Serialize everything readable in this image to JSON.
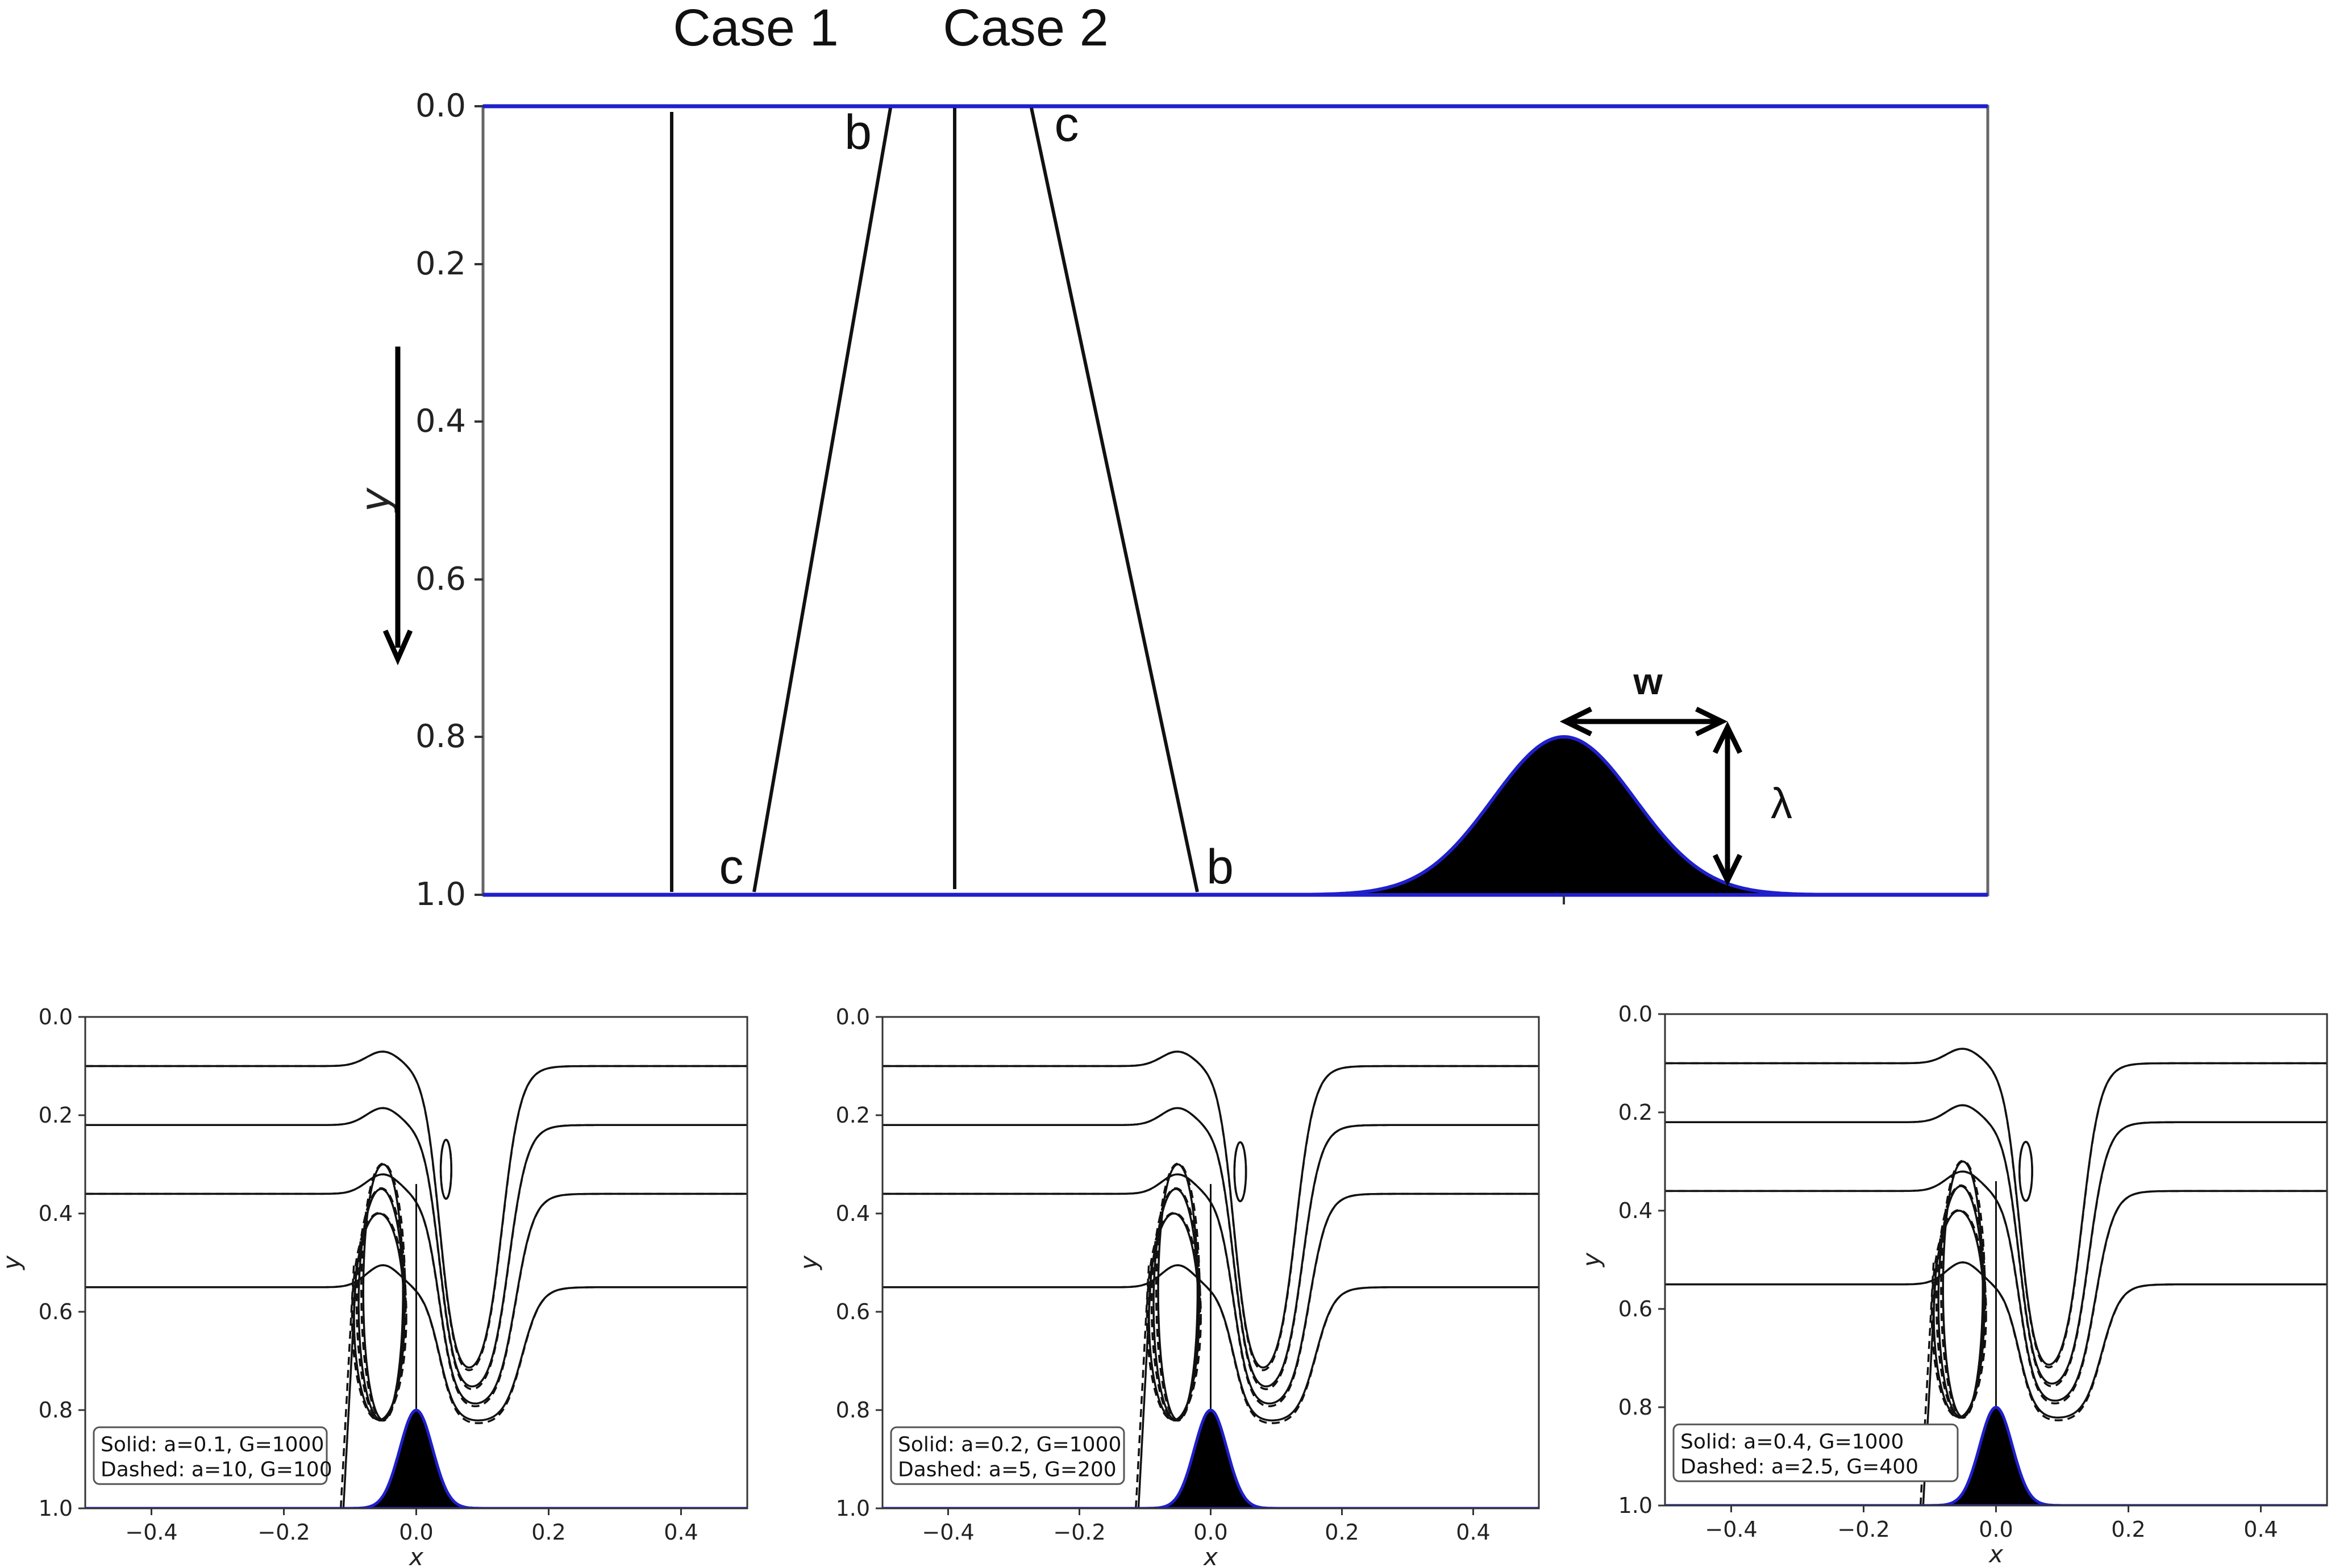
{
  "chart_data": [
    {
      "type": "line",
      "role": "schematic",
      "column_labels": [
        "Case 1",
        "Case 2"
      ],
      "ylabel": "y",
      "yticks": [
        "0.0",
        "0.2",
        "0.4",
        "0.6",
        "0.8",
        "1.0"
      ],
      "ylim": [
        0.0,
        1.0
      ],
      "y_inverted": true,
      "profile_labels": {
        "top_left": "b",
        "bottom_left": "c",
        "top_right": "c",
        "bottom_right": "b"
      },
      "bump": {
        "peak_y": 0.8,
        "base_y": 1.0,
        "width_label": "w",
        "height_label": "λ"
      },
      "colors": {
        "boundary": "#1f1fcc",
        "line": "#111111",
        "fill": "#000000"
      }
    },
    {
      "type": "line",
      "title": "",
      "xlabel": "x",
      "ylabel": "y",
      "xlim": [
        -0.5,
        0.5
      ],
      "ylim": [
        0.0,
        1.0
      ],
      "y_inverted": true,
      "xticks": [
        "−0.4",
        "−0.2",
        "0.0",
        "0.2",
        "0.4"
      ],
      "yticks": [
        "0.0",
        "0.2",
        "0.4",
        "0.6",
        "0.8",
        "1.0"
      ],
      "series": [
        {
          "name": "Solid: a=0.1, G=1000",
          "style": "solid",
          "interface_levels": [
            0.1,
            0.22,
            0.36,
            0.55
          ]
        },
        {
          "name": "Dashed: a=10, G=100",
          "style": "dashed",
          "interface_levels": [
            0.1,
            0.22,
            0.36,
            0.55
          ]
        }
      ],
      "legend_lines": [
        "Solid: a=0.1, G=1000",
        "Dashed: a=10, G=100"
      ],
      "legend_position": "lower-left",
      "bump": {
        "center_x": 0.0,
        "peak_y": 0.8,
        "base_y": 1.0
      }
    },
    {
      "type": "line",
      "xlabel": "x",
      "ylabel": "y",
      "xlim": [
        -0.5,
        0.5
      ],
      "ylim": [
        0.0,
        1.0
      ],
      "y_inverted": true,
      "xticks": [
        "−0.4",
        "−0.2",
        "0.0",
        "0.2",
        "0.4"
      ],
      "yticks": [
        "0.0",
        "0.2",
        "0.4",
        "0.6",
        "0.8",
        "1.0"
      ],
      "series": [
        {
          "name": "Solid: a=0.2, G=1000",
          "style": "solid",
          "interface_levels": [
            0.1,
            0.22,
            0.36,
            0.55
          ]
        },
        {
          "name": "Dashed: a=5, G=200",
          "style": "dashed",
          "interface_levels": [
            0.1,
            0.22,
            0.36,
            0.55
          ]
        }
      ],
      "legend_lines": [
        "Solid: a=0.2, G=1000",
        "Dashed: a=5, G=200"
      ],
      "legend_position": "lower-left",
      "bump": {
        "center_x": 0.0,
        "peak_y": 0.8,
        "base_y": 1.0
      }
    },
    {
      "type": "line",
      "xlabel": "x",
      "ylabel": "y",
      "xlim": [
        -0.5,
        0.5
      ],
      "ylim": [
        0.0,
        1.0
      ],
      "y_inverted": true,
      "xticks": [
        "−0.4",
        "−0.2",
        "0.0",
        "0.2",
        "0.4"
      ],
      "yticks": [
        "0.0",
        "0.2",
        "0.4",
        "0.6",
        "0.8",
        "1.0"
      ],
      "series": [
        {
          "name": "Solid: a=0.4, G=1000",
          "style": "solid",
          "interface_levels": [
            0.1,
            0.22,
            0.36,
            0.55
          ]
        },
        {
          "name": "Dashed: a=2.5, G=400",
          "style": "dashed",
          "interface_levels": [
            0.1,
            0.22,
            0.36,
            0.55
          ]
        }
      ],
      "legend_lines": [
        "Solid: a=0.4, G=1000",
        "Dashed: a=2.5, G=400"
      ],
      "legend_position": "lower-left",
      "bump": {
        "center_x": 0.0,
        "peak_y": 0.8,
        "base_y": 1.0
      }
    }
  ]
}
